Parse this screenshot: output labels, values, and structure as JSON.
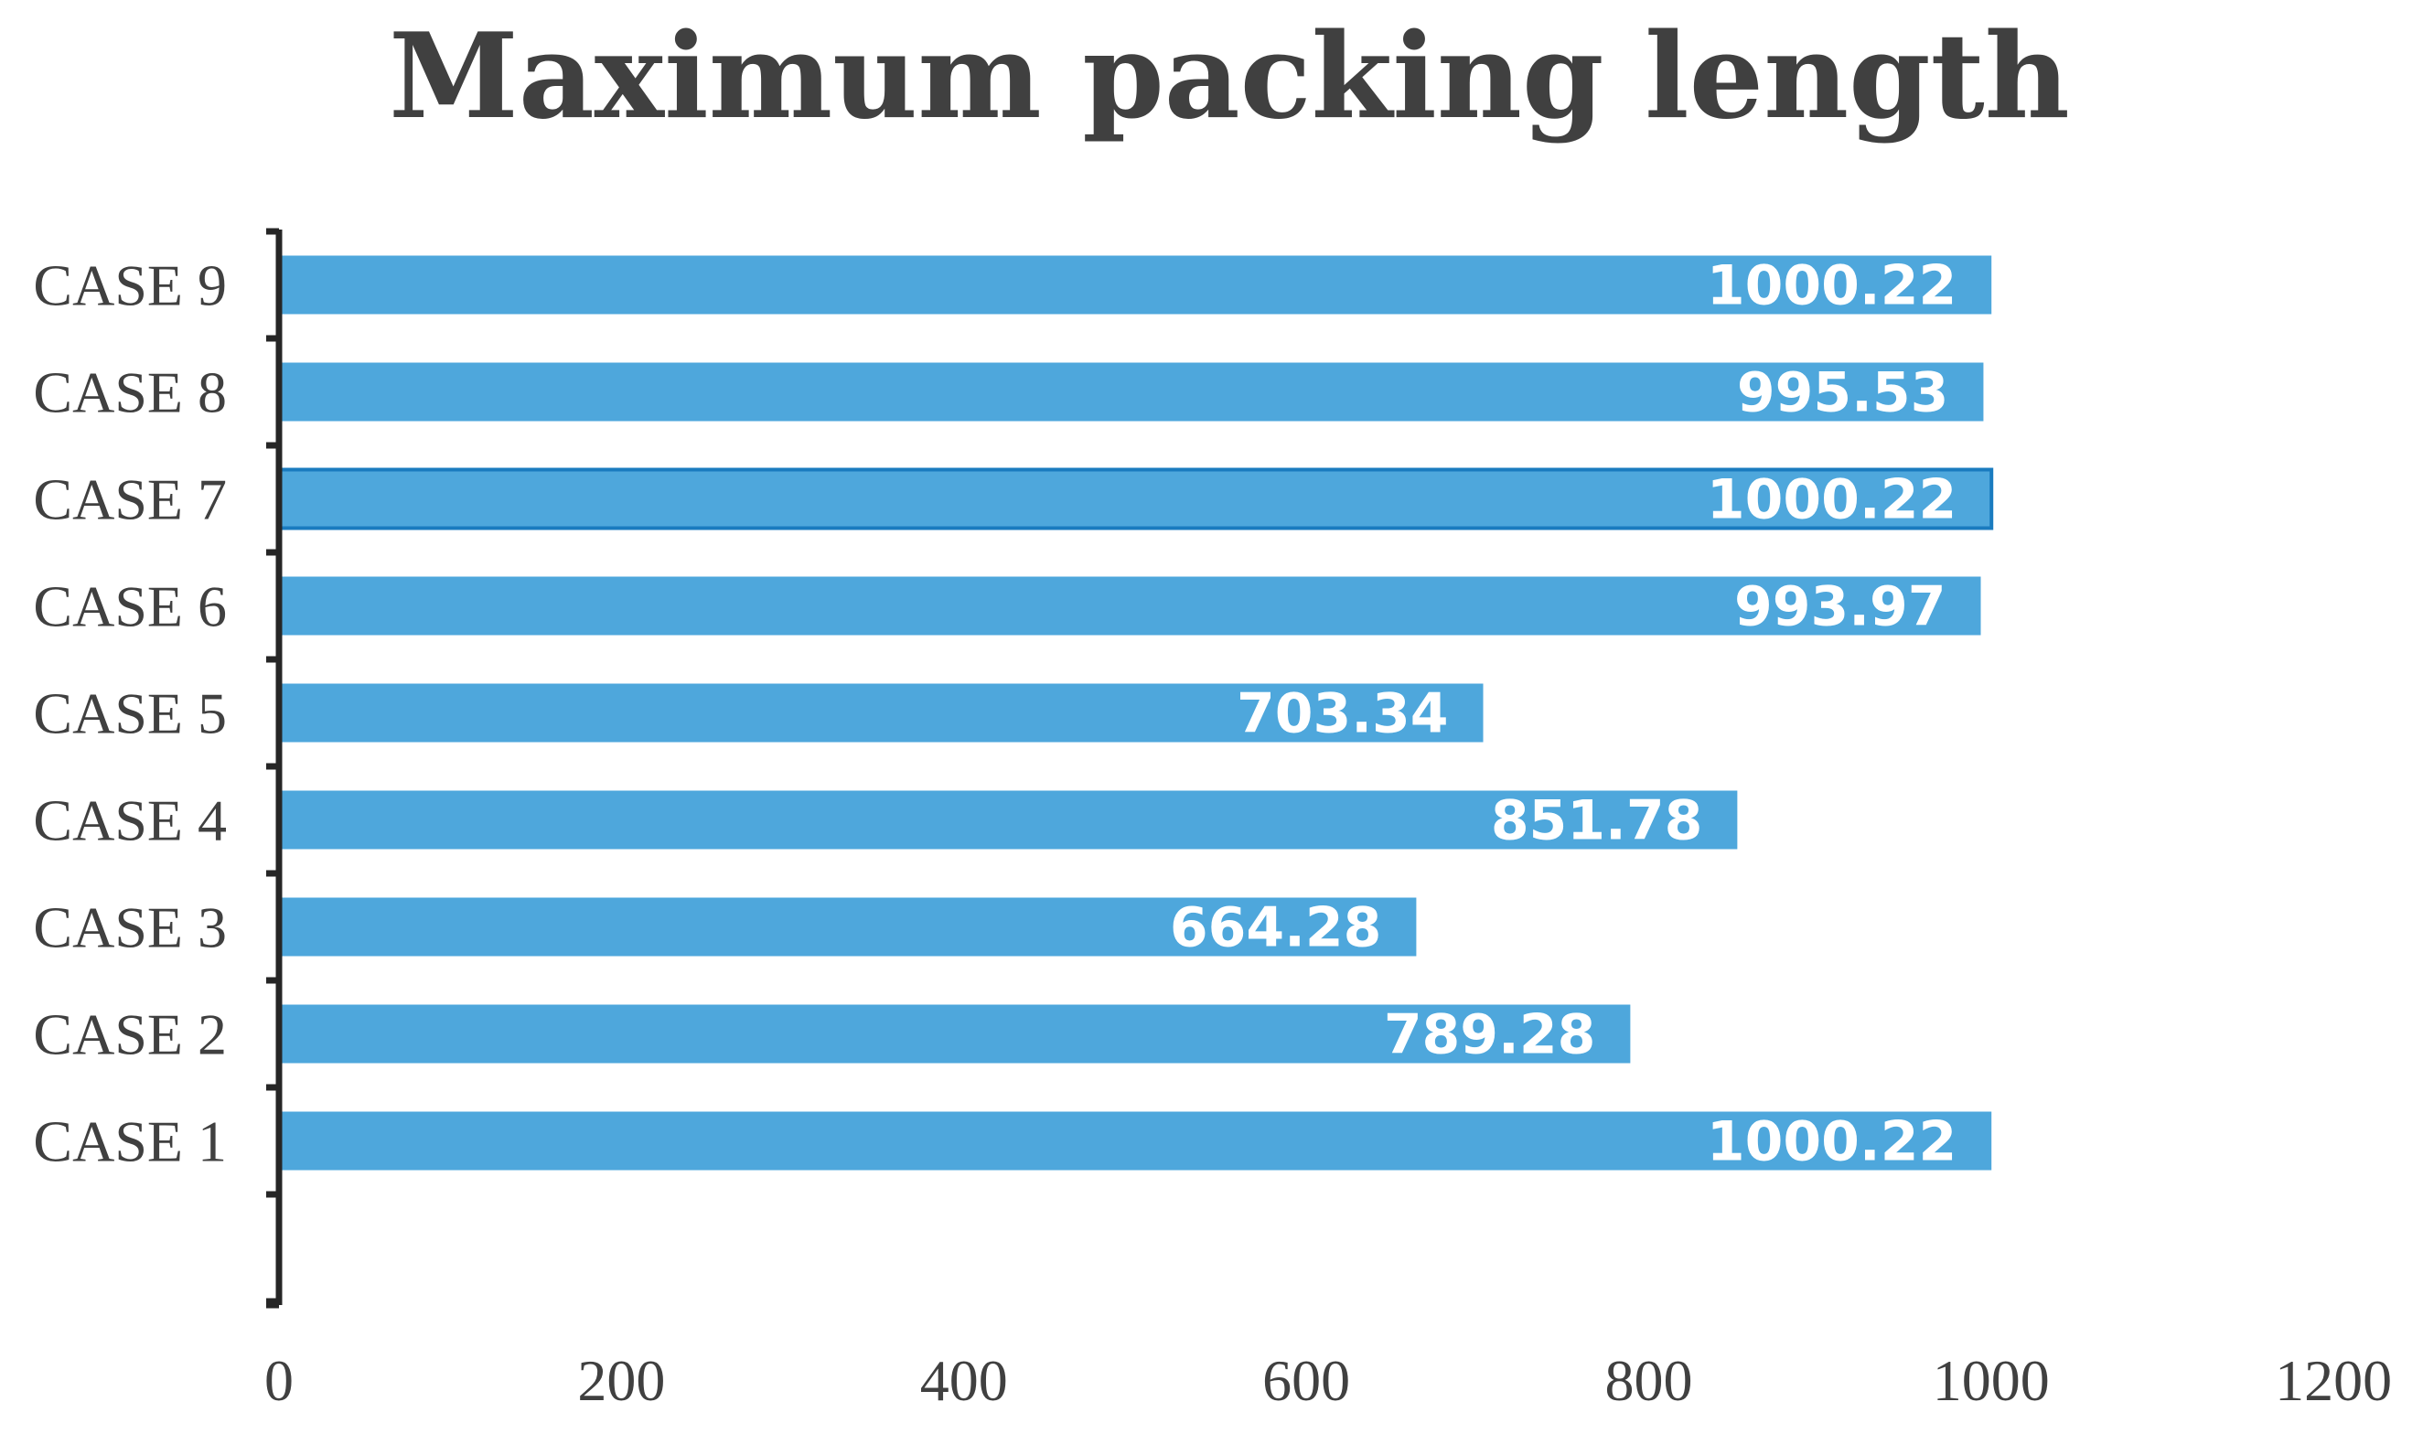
{
  "chart_data": {
    "type": "bar",
    "orientation": "horizontal",
    "title": "Maximum packing length",
    "xlabel": "",
    "ylabel": "",
    "categories": [
      "CASE 1",
      "CASE 2",
      "CASE 3",
      "CASE 4",
      "CASE 5",
      "CASE 6",
      "CASE 7",
      "CASE 8",
      "CASE 9"
    ],
    "values": [
      1000.22,
      789.28,
      664.28,
      851.78,
      703.34,
      993.97,
      1000.22,
      995.53,
      1000.22
    ],
    "data_labels": [
      "1000.22",
      "789.28",
      "664.28",
      "851.78",
      "703.34",
      "993.97",
      "1000.22",
      "995.53",
      "1000.22"
    ],
    "xlim": [
      0,
      1200
    ],
    "x_ticks": [
      0,
      200,
      400,
      600,
      800,
      1000,
      1200
    ],
    "x_tick_labels": [
      "0",
      "200",
      "400",
      "600",
      "800",
      "1000",
      "1200"
    ],
    "grid": false,
    "legend": "none",
    "colors": {
      "bar": "#4ea7dc",
      "highlight_border": "#1a7bbf",
      "data_label": "#ffffff",
      "text": "#404040",
      "axis": "#262626"
    },
    "highlighted_category": "CASE 7"
  }
}
